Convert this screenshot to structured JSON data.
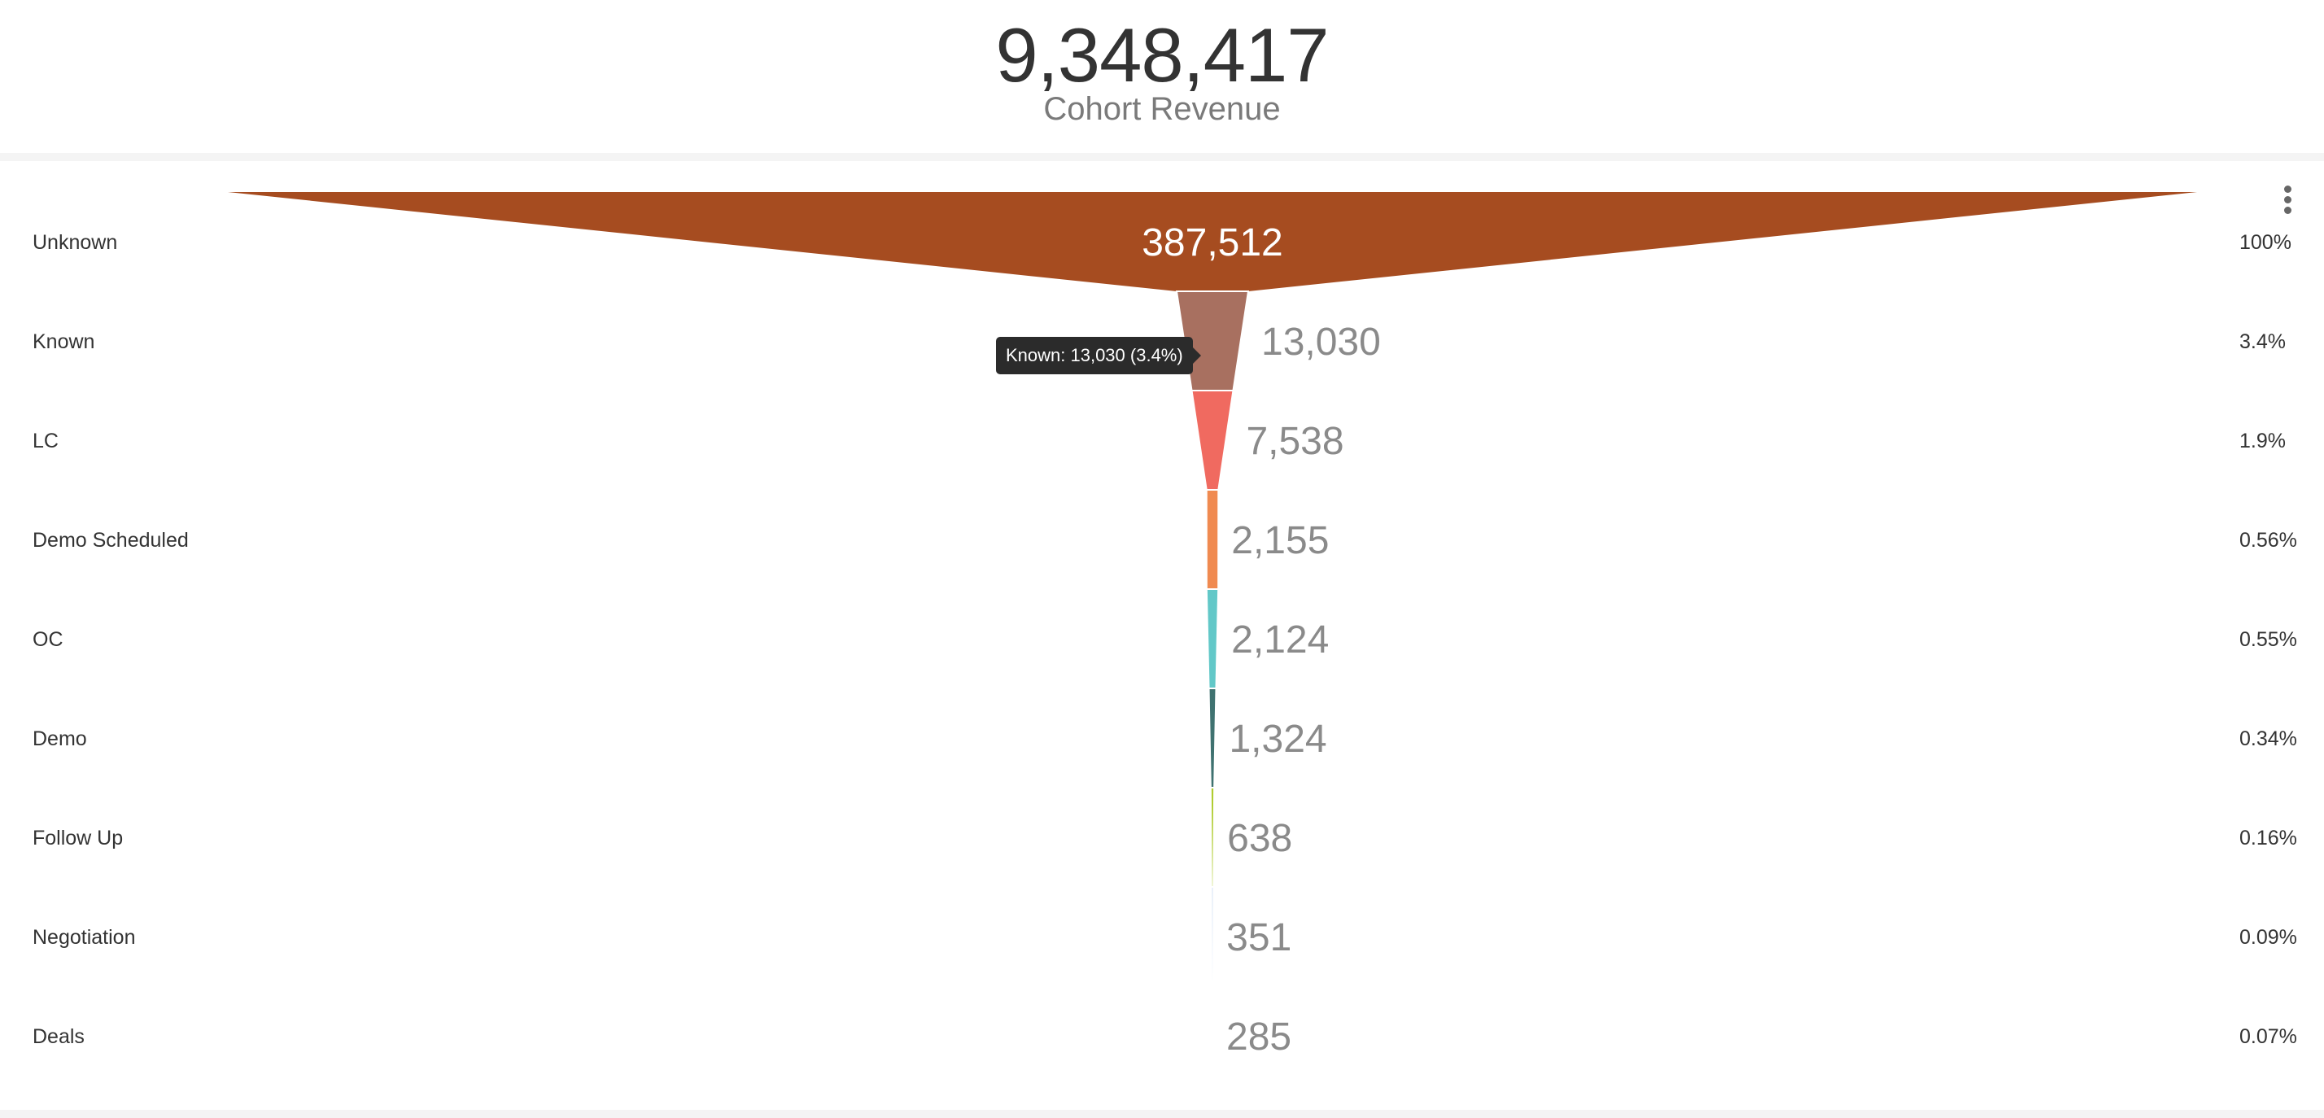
{
  "kpi": {
    "value": "9,348,417",
    "label": "Cohort Revenue"
  },
  "chart_data": {
    "type": "funnel",
    "categories": [
      "Unknown",
      "Known",
      "LC",
      "Demo Scheduled",
      "OC",
      "Demo",
      "Follow Up",
      "Negotiation",
      "Deals"
    ],
    "values": [
      387512,
      13030,
      7538,
      2155,
      2124,
      1324,
      638,
      351,
      285
    ],
    "value_labels": [
      "387,512",
      "13,030",
      "7,538",
      "2,155",
      "2,124",
      "1,324",
      "638",
      "351",
      "285"
    ],
    "percent_labels": [
      "100%",
      "3.4%",
      "1.9%",
      "0.56%",
      "0.55%",
      "0.34%",
      "0.16%",
      "0.09%",
      "0.07%"
    ],
    "colors": [
      "#a64c20",
      "#a87060",
      "#f06a60",
      "#f08a50",
      "#62c8c8",
      "#3f7270",
      "#b0cc30",
      "#8aaee0",
      "#8aaee0"
    ]
  },
  "tooltip": {
    "text": "Known: 13,030 (3.4%)"
  },
  "menu": {
    "icon": "more-vertical-icon"
  }
}
